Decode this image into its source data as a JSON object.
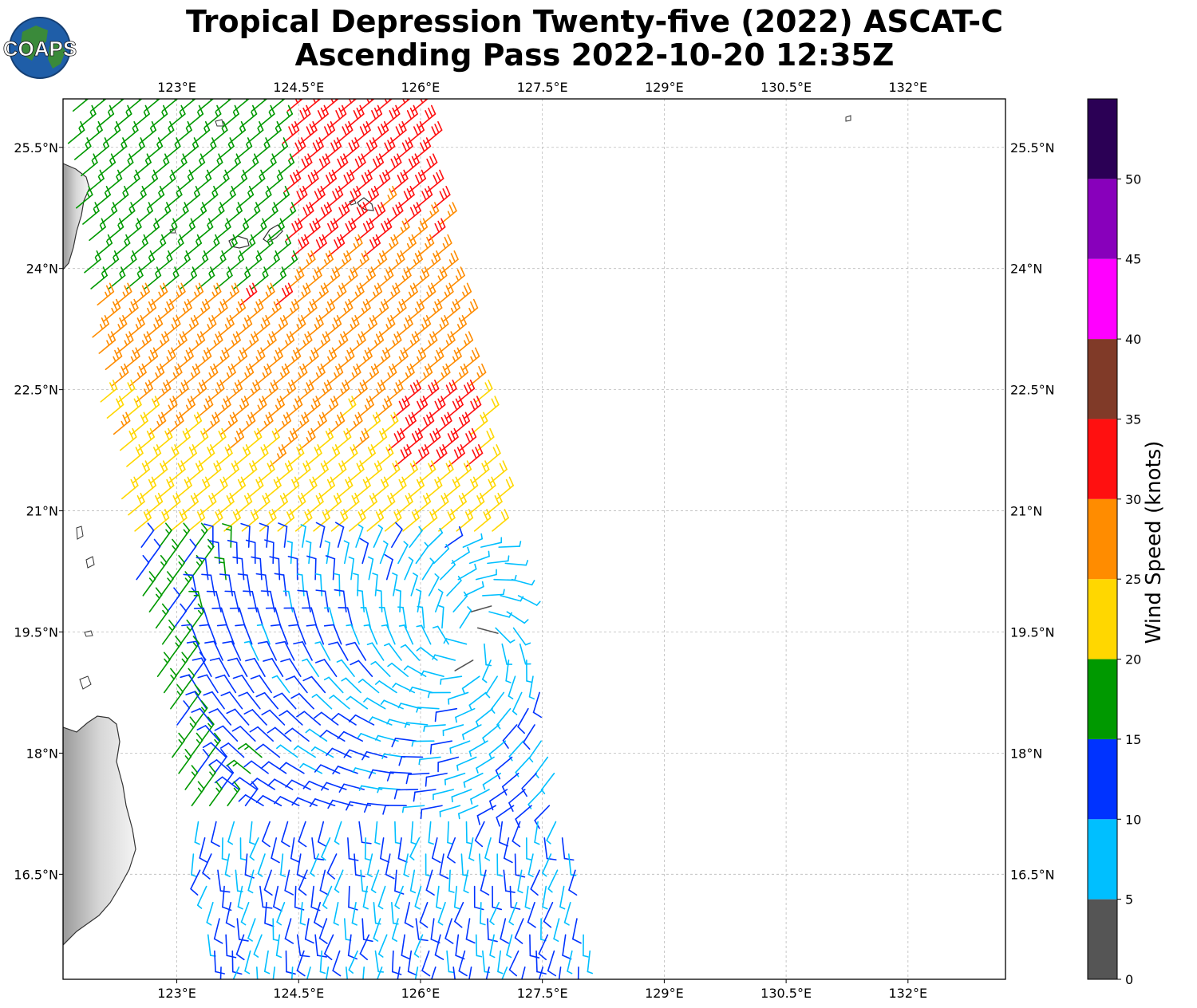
{
  "header": {
    "title_line1": "Tropical Depression Twenty-five (2022) ASCAT-C",
    "title_line2": "Ascending Pass 2022-10-20 12:35Z",
    "logo_text": "COAPS"
  },
  "map": {
    "lon_range": [
      121.6,
      133.2
    ],
    "lat_range": [
      15.2,
      26.1
    ],
    "lon_ticks": [
      "123°E",
      "124.5°E",
      "126°E",
      "127.5°E",
      "129°E",
      "130.5°E",
      "132°E"
    ],
    "lon_tick_values": [
      123,
      124.5,
      126,
      127.5,
      129,
      130.5,
      132
    ],
    "lat_ticks": [
      "25.5°N",
      "24°N",
      "22.5°N",
      "21°N",
      "19.5°N",
      "18°N",
      "16.5°N"
    ],
    "lat_tick_values": [
      25.5,
      24,
      22.5,
      21,
      19.5,
      18,
      16.5
    ],
    "gridlines": true,
    "wind_barbs": "ASCAT-C wind vectors",
    "storm_center": [
      126.6,
      19.4
    ]
  },
  "colorbar": {
    "label": "Wind Speed (knots)",
    "ticks": [
      "0",
      "5",
      "10",
      "15",
      "20",
      "25",
      "30",
      "35",
      "40",
      "45",
      "50"
    ],
    "colors": [
      "#555555",
      "#00bfff",
      "#0033ff",
      "#009900",
      "#ffd700",
      "#ff8c00",
      "#ff1010",
      "#803a28",
      "#ff00ff",
      "#8800bb",
      "#2b0055"
    ]
  }
}
